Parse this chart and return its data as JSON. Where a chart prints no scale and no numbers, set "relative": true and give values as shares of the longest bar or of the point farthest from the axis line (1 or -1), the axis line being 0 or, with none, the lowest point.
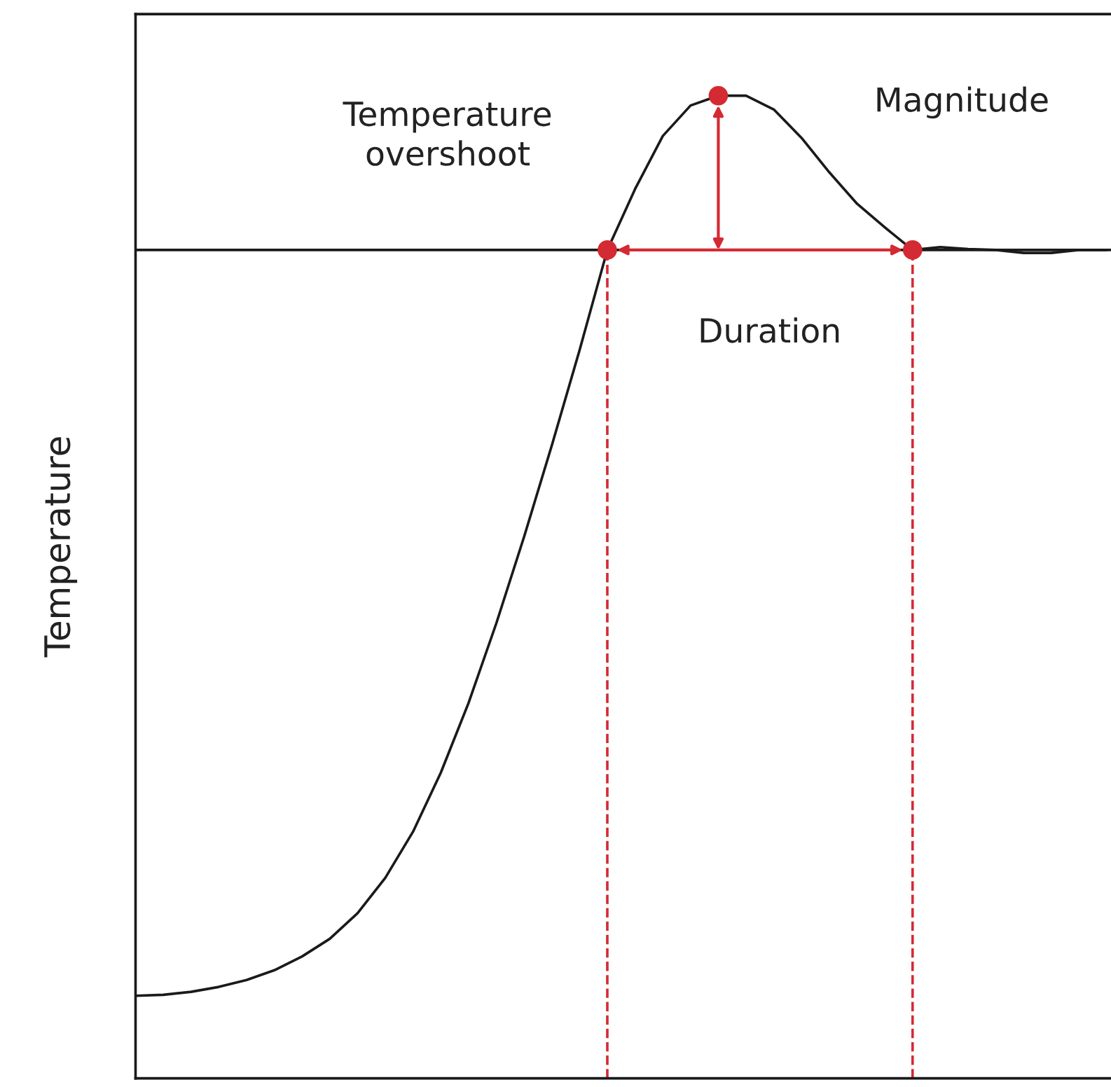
{
  "chart_data": {
    "type": "line",
    "relative": true,
    "ylabel": "Temperature",
    "categories": [
      null,
      null,
      null,
      null,
      null,
      null,
      null,
      null,
      null,
      null,
      null,
      null,
      null,
      null,
      null,
      null,
      null,
      null,
      null,
      null,
      null,
      null,
      null,
      null,
      null,
      null,
      null,
      null,
      null,
      null,
      null,
      null,
      null,
      null,
      null,
      null
    ],
    "series": [
      {
        "color": "#1a1a1a",
        "values": [
          0.084,
          0.085,
          0.088,
          0.093,
          0.1,
          0.11,
          0.124,
          0.142,
          0.168,
          0.204,
          0.251,
          0.311,
          0.382,
          0.463,
          0.551,
          0.644,
          0.741,
          0.843,
          0.905,
          0.959,
          0.99,
          1,
          1,
          0.986,
          0.957,
          0.922,
          0.89,
          0.866,
          0.843,
          0.846,
          0.844,
          0.843,
          0.84,
          0.84,
          0.843,
          0.843
        ]
      }
    ],
    "ref_lines": [
      {
        "axis": "y",
        "value": 0.843,
        "color": "#1a1a1a",
        "line_style": "solid"
      }
    ],
    "annotations": [
      "Temperature\novershoot",
      "Magnitude",
      "Duration"
    ]
  }
}
